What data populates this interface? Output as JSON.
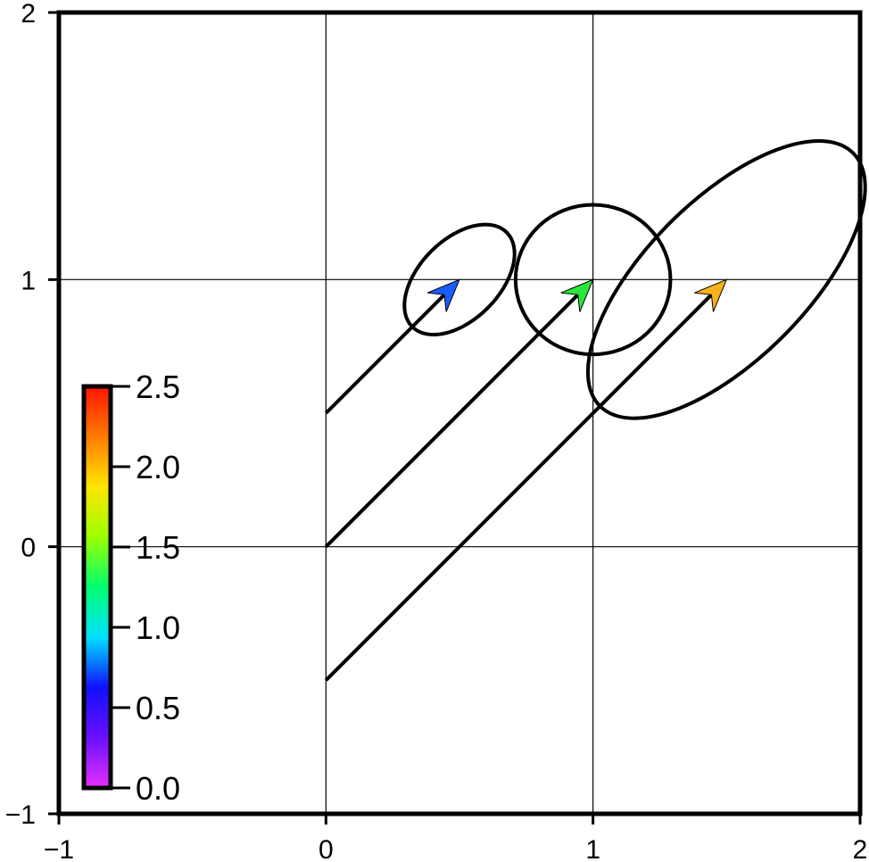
{
  "chart_data": {
    "type": "scatter",
    "title": "",
    "xlabel": "",
    "ylabel": "",
    "xlim": [
      -1,
      2
    ],
    "ylim": [
      -1,
      2
    ],
    "grid": true,
    "x_ticks": [
      -1,
      0,
      1,
      2
    ],
    "y_ticks": [
      -1,
      0,
      1,
      2
    ],
    "x_tick_labels": [
      "−1",
      "0",
      "1",
      "2"
    ],
    "y_tick_labels": [
      "−1",
      "0",
      "1",
      "2"
    ],
    "vectors": [
      {
        "x0": 0,
        "y0": 0.5,
        "x1": 0.5,
        "y1": 1.0,
        "value": 0.5,
        "color": "#1a5cff",
        "ellipse": {
          "cx": 0.5,
          "cy": 1.0,
          "a": 0.25,
          "b": 0.15,
          "angle_deg": 45
        }
      },
      {
        "x0": 0,
        "y0": 0.0,
        "x1": 1.0,
        "y1": 1.0,
        "value": 1.5,
        "color": "#28e83c",
        "ellipse": {
          "cx": 1.0,
          "cy": 1.0,
          "a": 0.29,
          "b": 0.28,
          "angle_deg": 0
        }
      },
      {
        "x0": 0,
        "y0": -0.5,
        "x1": 1.5,
        "y1": 1.0,
        "value": 2.1,
        "color": "#f6b21c",
        "ellipse": {
          "cx": 1.5,
          "cy": 1.0,
          "a": 0.67,
          "b": 0.3,
          "angle_deg": 45
        }
      }
    ],
    "colorbar": {
      "range": [
        0.0,
        2.5
      ],
      "tick_labels": [
        "0.0",
        "0.5",
        "1.0",
        "1.5",
        "2.0",
        "2.5"
      ],
      "colors": [
        "#e830ff",
        "#6a10ff",
        "#1010ff",
        "#00e0ff",
        "#00ff70",
        "#9bff00",
        "#ffe600",
        "#ff7a00",
        "#ff1400"
      ],
      "position": "bottom-left"
    }
  }
}
